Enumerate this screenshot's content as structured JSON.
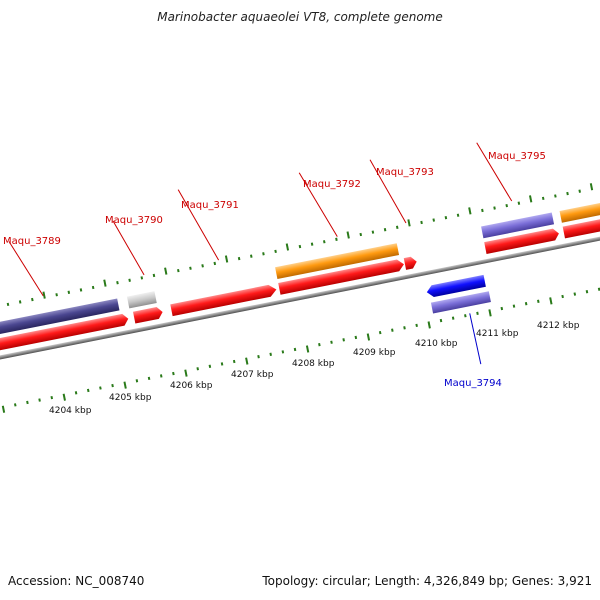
{
  "title": "Marinobacter aquaeolei VT8, complete genome",
  "footer": {
    "accession": "Accession: NC_008740",
    "summary": "Topology: circular; Length: 4,326,849 bp; Genes: 3,921"
  },
  "colors": {
    "backbone": "#808080",
    "tick": "#2a7a1a",
    "cds": "#ff0000",
    "gene_forward": "#ff8c00",
    "gene_reverse": "#6a5acd",
    "gene_dark": "#40407a",
    "pseudo": "#c0c0c0",
    "reverse_cds": "#0000ee",
    "label_forward": "#cc0000",
    "label_reverse": "#0000cc"
  },
  "scale_labels": [
    "4204 kbp",
    "4205 kbp",
    "4206 kbp",
    "4207 kbp",
    "4208 kbp",
    "4209 kbp",
    "4210 kbp",
    "4211 kbp",
    "4212 kbp"
  ],
  "gene_labels": [
    {
      "id": "Maqu_3789",
      "strand": "forward"
    },
    {
      "id": "Maqu_3790",
      "strand": "forward"
    },
    {
      "id": "Maqu_3791",
      "strand": "forward"
    },
    {
      "id": "Maqu_3792",
      "strand": "forward"
    },
    {
      "id": "Maqu_3793",
      "strand": "forward"
    },
    {
      "id": "Maqu_3795",
      "strand": "forward"
    },
    {
      "id": "Maqu_3794",
      "strand": "reverse"
    }
  ]
}
